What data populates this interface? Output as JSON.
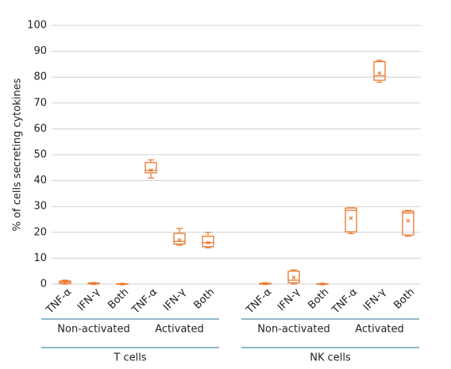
{
  "chart_data": {
    "type": "box",
    "y_label": "% of cells secreting cytokines",
    "ylim": [
      0,
      100
    ],
    "yticks": [
      0,
      10,
      20,
      30,
      40,
      50,
      60,
      70,
      80,
      90,
      100
    ],
    "grid": true,
    "color": "#e8772e",
    "group_line_color": "#4a8fa8",
    "groups": [
      {
        "name": "T cells",
        "subgroups": [
          {
            "name": "Non-activated",
            "categories": [
              "TNF-α",
              "IFN-γ",
              "Both"
            ],
            "boxes": [
              {
                "min": 0,
                "q1": 0.2,
                "median": 0.8,
                "q3": 1.2,
                "max": 1.5,
                "mean": 0.8
              },
              {
                "min": 0,
                "q1": 0.1,
                "median": 0.2,
                "q3": 0.4,
                "max": 0.5,
                "mean": 0.2
              },
              {
                "min": 0,
                "q1": 0,
                "median": 0,
                "q3": 0.1,
                "max": 0.1,
                "mean": 0
              }
            ]
          },
          {
            "name": "Activated",
            "categories": [
              "TNF-α",
              "IFN-γ",
              "Both"
            ],
            "boxes": [
              {
                "min": 41,
                "q1": 43,
                "median": 44,
                "q3": 47,
                "max": 48,
                "mean": 44
              },
              {
                "min": 15,
                "q1": 15.5,
                "median": 16.5,
                "q3": 19.6,
                "max": 21.5,
                "mean": 17
              },
              {
                "min": 14,
                "q1": 14.5,
                "median": 16,
                "q3": 18.5,
                "max": 20,
                "mean": 16
              }
            ]
          }
        ]
      },
      {
        "name": "NK cells",
        "subgroups": [
          {
            "name": "Non-activated",
            "categories": [
              "TNF-α",
              "IFN-γ",
              "Both"
            ],
            "boxes": [
              {
                "min": 0,
                "q1": 0,
                "median": 0.1,
                "q3": 0.3,
                "max": 0.4,
                "mean": 0.2
              },
              {
                "min": 0,
                "q1": 0.5,
                "median": 1.5,
                "q3": 5,
                "max": 5.5,
                "mean": 2.5
              },
              {
                "min": 0,
                "q1": 0,
                "median": 0,
                "q3": 0.1,
                "max": 0.2,
                "mean": 0
              }
            ]
          },
          {
            "name": "Activated",
            "categories": [
              "TNF-α",
              "IFN-γ",
              "Both"
            ],
            "boxes": [
              {
                "min": 19.5,
                "q1": 20.2,
                "median": 28.5,
                "q3": 29.4,
                "max": 29.5,
                "mean": 25.5
              },
              {
                "min": 78,
                "q1": 78.8,
                "median": 80.5,
                "q3": 86,
                "max": 86.5,
                "mean": 81.5
              },
              {
                "min": 18.5,
                "q1": 19,
                "median": 27.5,
                "q3": 28.2,
                "max": 28.5,
                "mean": 24.5
              }
            ]
          }
        ]
      }
    ]
  }
}
